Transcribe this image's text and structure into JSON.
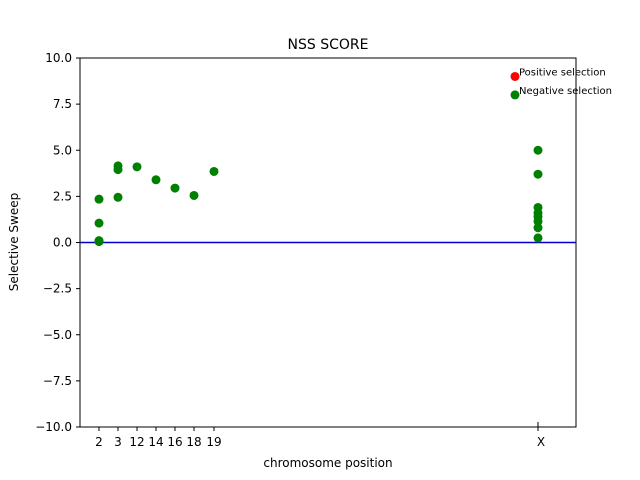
{
  "chart_data": {
    "type": "scatter",
    "title": "NSS SCORE",
    "xlabel": "chromosome position",
    "ylabel": "Selective Sweep",
    "ylim": [
      -10,
      10
    ],
    "yticks": [
      -10,
      -7.5,
      -5,
      -2.5,
      0,
      2.5,
      5,
      7.5,
      10
    ],
    "ytick_labels": [
      "−10.0",
      "−7.5",
      "−5.0",
      "−2.5",
      "0.0",
      "2.5",
      "5.0",
      "7.5",
      "10.0"
    ],
    "xticks": [
      "2",
      "3",
      "12",
      "14",
      "16",
      "18",
      "19",
      "X"
    ],
    "grid": false,
    "reference_line": {
      "y": 0,
      "color": "#0000cc"
    },
    "colors": {
      "positive": "#ff0000",
      "negative": "#008000",
      "baseline": "#0000cc"
    },
    "series": [
      {
        "name": "Negative selection",
        "color": "#008000",
        "points": [
          {
            "x": "2",
            "y": 2.35
          },
          {
            "x": "2",
            "y": 1.05
          },
          {
            "x": "2",
            "y": 0.1
          },
          {
            "x": "2",
            "y": 0.05
          },
          {
            "x": "3",
            "y": 4.15
          },
          {
            "x": "3",
            "y": 3.95
          },
          {
            "x": "3",
            "y": 2.45
          },
          {
            "x": "12",
            "y": 4.1
          },
          {
            "x": "14",
            "y": 3.4
          },
          {
            "x": "16",
            "y": 2.95
          },
          {
            "x": "18",
            "y": 2.55
          },
          {
            "x": "19",
            "y": 3.85
          },
          {
            "x": "X",
            "y": 5.0
          },
          {
            "x": "X",
            "y": 3.7
          },
          {
            "x": "X",
            "y": 1.9
          },
          {
            "x": "X",
            "y": 1.6
          },
          {
            "x": "X",
            "y": 1.4
          },
          {
            "x": "X",
            "y": 1.15
          },
          {
            "x": "X",
            "y": 0.8
          },
          {
            "x": "X",
            "y": 0.25
          }
        ]
      }
    ],
    "legend": {
      "placement": "top-right",
      "entries": [
        {
          "label": "Positive selection",
          "color": "#ff0000",
          "y": 9.0
        },
        {
          "label": "Negative selection",
          "color": "#008000",
          "y": 8.0
        }
      ]
    }
  }
}
